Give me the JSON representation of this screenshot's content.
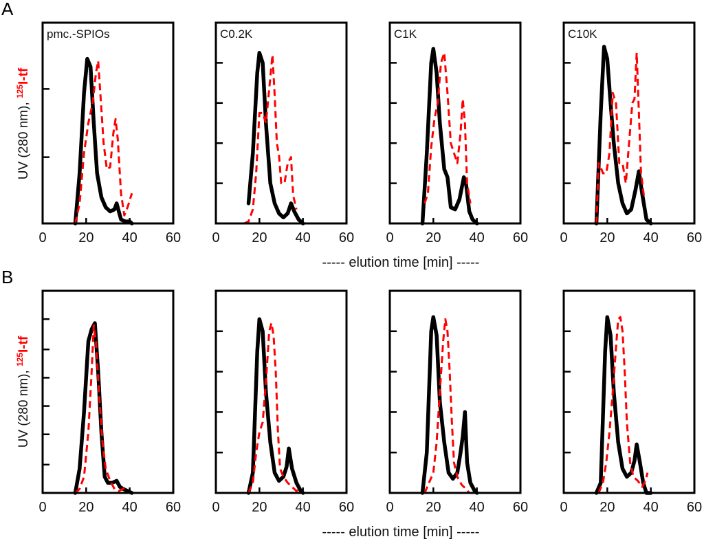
{
  "chart_data": {
    "type": "line",
    "figure_rows": [
      {
        "label": "A",
        "xlabel": "----- elution time [min] -----",
        "ylabel_black": "UV (280 nm),",
        "ylabel_red_sup": "125",
        "ylabel_red": "I-tf",
        "panels": [
          {
            "title": "pmc.-SPIOs",
            "xlim": [
              0,
              60
            ],
            "ylim": [
              0,
              1
            ],
            "xticks": [
              0,
              20,
              40,
              60
            ],
            "yticks": [
              0.33,
              0.67
            ],
            "series": [
              {
                "name": "UV (280 nm)",
                "style": "solid",
                "color": "#000000",
                "x": [
                  15,
                  17,
                  19,
                  20.5,
                  22,
                  23.5,
                  25,
                  27,
                  29,
                  31,
                  33,
                  34,
                  35,
                  36,
                  38,
                  40,
                  41
                ],
                "y": [
                  0,
                  0.25,
                  0.65,
                  0.82,
                  0.78,
                  0.5,
                  0.25,
                  0.13,
                  0.08,
                  0.06,
                  0.07,
                  0.1,
                  0.06,
                  0.02,
                  0.01,
                  0.01,
                  0
                ]
              },
              {
                "name": "125I-tf",
                "style": "dashed",
                "color": "#ff0000",
                "x": [
                  15,
                  17,
                  19,
                  21,
                  23,
                  24.5,
                  25.5,
                  26.5,
                  28,
                  29.5,
                  31,
                  32.5,
                  33.5,
                  34.5,
                  36,
                  37.5,
                  39,
                  41
                ],
                "y": [
                  0,
                  0.1,
                  0.35,
                  0.5,
                  0.6,
                  0.75,
                  0.81,
                  0.65,
                  0.4,
                  0.27,
                  0.28,
                  0.45,
                  0.52,
                  0.42,
                  0.15,
                  0.04,
                  0.08,
                  0.15
                ]
              }
            ]
          },
          {
            "title": "C0.2K",
            "xlim": [
              0,
              60
            ],
            "ylim": [
              0,
              1
            ],
            "xticks": [
              0,
              20,
              40,
              60
            ],
            "yticks": [
              0.2,
              0.4,
              0.6,
              0.8
            ],
            "series": [
              {
                "name": "UV (280 nm)",
                "style": "solid",
                "color": "#000000",
                "x": [
                  15,
                  17,
                  19,
                  20,
                  21.5,
                  23,
                  25,
                  27,
                  29,
                  31,
                  33,
                  34.5,
                  36,
                  38,
                  40
                ],
                "y": [
                  0.1,
                  0.35,
                  0.75,
                  0.85,
                  0.8,
                  0.5,
                  0.2,
                  0.1,
                  0.05,
                  0.03,
                  0.05,
                  0.1,
                  0.06,
                  0.02,
                  0
                ]
              },
              {
                "name": "125I-tf",
                "style": "dashed",
                "color": "#ff0000",
                "x": [
                  13,
                  15,
                  17,
                  18.5,
                  20,
                  21.5,
                  23,
                  24.5,
                  26,
                  27,
                  28,
                  29,
                  30,
                  31.5,
                  33,
                  34.5,
                  35.5,
                  37
                ],
                "y": [
                  0,
                  0.01,
                  0.07,
                  0.25,
                  0.55,
                  0.55,
                  0.5,
                  0.67,
                  0.84,
                  0.64,
                  0.4,
                  0.34,
                  0.2,
                  0.2,
                  0.3,
                  0.33,
                  0.14,
                  0.07
                ]
              }
            ]
          },
          {
            "title": "C1K",
            "xlim": [
              0,
              60
            ],
            "ylim": [
              0,
              1
            ],
            "xticks": [
              0,
              20,
              40,
              60
            ],
            "yticks": [
              0.2,
              0.4,
              0.6,
              0.8
            ],
            "series": [
              {
                "name": "UV (280 nm)",
                "style": "solid",
                "color": "#000000",
                "x": [
                  15,
                  17,
                  19,
                  20,
                  21.5,
                  23,
                  25,
                  26.5,
                  28,
                  30,
                  32,
                  34,
                  35,
                  36.5,
                  38,
                  40
                ],
                "y": [
                  0,
                  0.35,
                  0.8,
                  0.87,
                  0.75,
                  0.5,
                  0.27,
                  0.23,
                  0.08,
                  0.07,
                  0.12,
                  0.23,
                  0.2,
                  0.06,
                  0.02,
                  0
                ]
              },
              {
                "name": "125I-tf",
                "style": "dashed",
                "color": "#ff0000",
                "x": [
                  16,
                  17.5,
                  19,
                  20.5,
                  22,
                  23.5,
                  25,
                  26.5,
                  28,
                  29.5,
                  31,
                  32.5,
                  33.5,
                  34.5,
                  35.5,
                  37
                ],
                "y": [
                  0.1,
                  0.15,
                  0.38,
                  0.52,
                  0.6,
                  0.8,
                  0.85,
                  0.65,
                  0.4,
                  0.35,
                  0.3,
                  0.45,
                  0.62,
                  0.5,
                  0.2,
                  0.1
                ]
              }
            ]
          },
          {
            "title": "C10K",
            "xlim": [
              0,
              60
            ],
            "ylim": [
              0,
              1
            ],
            "xticks": [
              0,
              20,
              40,
              60
            ],
            "yticks": [
              0.2,
              0.4,
              0.6,
              0.8
            ],
            "series": [
              {
                "name": "UV (280 nm)",
                "style": "solid",
                "color": "#000000",
                "x": [
                  15,
                  17,
                  18.5,
                  20,
                  21.5,
                  23,
                  25,
                  27,
                  29,
                  31,
                  33,
                  34.5,
                  36,
                  38,
                  40
                ],
                "y": [
                  0,
                  0.55,
                  0.88,
                  0.82,
                  0.6,
                  0.4,
                  0.2,
                  0.1,
                  0.05,
                  0.07,
                  0.17,
                  0.26,
                  0.15,
                  0.02,
                  0
                ]
              },
              {
                "name": "125I-tf",
                "style": "dashed",
                "color": "#ff0000",
                "x": [
                  15,
                  16,
                  17,
                  18,
                  19.5,
                  21,
                  22.5,
                  24,
                  25.5,
                  27,
                  28.5,
                  30,
                  31.5,
                  32.5,
                  33.5,
                  34.5,
                  35.5,
                  37
                ],
                "y": [
                  0,
                  0.3,
                  0.28,
                  0.25,
                  0.25,
                  0.35,
                  0.65,
                  0.6,
                  0.3,
                  0.3,
                  0.2,
                  0.4,
                  0.6,
                  0.62,
                  0.85,
                  0.55,
                  0.25,
                  0.12
                ]
              }
            ]
          }
        ]
      },
      {
        "label": "B",
        "xlabel": "----- elution time [min] -----",
        "ylabel_black": "UV (280 nm),",
        "ylabel_red_sup": "125",
        "ylabel_red": "I-tf",
        "panels": [
          {
            "title": "",
            "xlim": [
              0,
              60
            ],
            "ylim": [
              0,
              1
            ],
            "xticks": [
              0,
              20,
              40,
              60
            ],
            "yticks": [
              0.14,
              0.29,
              0.43,
              0.57,
              0.71,
              0.86
            ],
            "series": [
              {
                "name": "UV (280 nm)",
                "style": "solid",
                "color": "#000000",
                "x": [
                  15,
                  17,
                  19,
                  21,
                  22.5,
                  24,
                  25.5,
                  27,
                  28.5,
                  30,
                  32,
                  34,
                  35.5,
                  37,
                  39,
                  41
                ],
                "y": [
                  0,
                  0.12,
                  0.4,
                  0.75,
                  0.81,
                  0.84,
                  0.6,
                  0.3,
                  0.08,
                  0.05,
                  0.05,
                  0.06,
                  0.03,
                  0.02,
                  0.01,
                  0
                ]
              },
              {
                "name": "125I-tf",
                "style": "dashed",
                "color": "#ff0000",
                "x": [
                  15,
                  17,
                  19,
                  21,
                  22.5,
                  23.5,
                  24.5,
                  26,
                  27.5,
                  29,
                  31,
                  33,
                  35,
                  37,
                  38.5
                ],
                "y": [
                  0,
                  0.02,
                  0.08,
                  0.3,
                  0.6,
                  0.83,
                  0.75,
                  0.48,
                  0.25,
                  0.12,
                  0.06,
                  0.02,
                  0.01,
                  0.02,
                  0.04
                ]
              }
            ]
          },
          {
            "title": "",
            "xlim": [
              0,
              60
            ],
            "ylim": [
              0,
              1
            ],
            "xticks": [
              0,
              20,
              40,
              60
            ],
            "yticks": [
              0.2,
              0.4,
              0.6,
              0.8
            ],
            "series": [
              {
                "name": "UV (280 nm)",
                "style": "solid",
                "color": "#000000",
                "x": [
                  15,
                  17,
                  19,
                  20,
                  21.5,
                  23,
                  25,
                  27,
                  29,
                  31,
                  32.5,
                  33.5,
                  35,
                  37,
                  39,
                  40
                ],
                "y": [
                  0,
                  0.1,
                  0.7,
                  0.86,
                  0.8,
                  0.5,
                  0.25,
                  0.1,
                  0.06,
                  0.08,
                  0.13,
                  0.22,
                  0.12,
                  0.05,
                  0.01,
                  0
                ]
              },
              {
                "name": "125I-tf",
                "style": "dashed",
                "color": "#ff0000",
                "x": [
                  15,
                  17,
                  18.5,
                  20,
                  21.5,
                  23,
                  24.5,
                  25.5,
                  26.5,
                  27.5,
                  28.5,
                  29.5,
                  31,
                  33,
                  35,
                  37,
                  38.5
                ],
                "y": [
                  0,
                  0.05,
                  0.2,
                  0.3,
                  0.35,
                  0.55,
                  0.8,
                  0.84,
                  0.78,
                  0.6,
                  0.3,
                  0.12,
                  0.08,
                  0.05,
                  0.03,
                  0.01,
                  0.02
                ]
              }
            ]
          },
          {
            "title": "",
            "xlim": [
              0,
              60
            ],
            "ylim": [
              0,
              1
            ],
            "xticks": [
              0,
              20,
              40,
              60
            ],
            "yticks": [
              0.2,
              0.4,
              0.6,
              0.8
            ],
            "series": [
              {
                "name": "UV (280 nm)",
                "style": "solid",
                "color": "#000000",
                "x": [
                  15,
                  17,
                  19,
                  20,
                  21.5,
                  23,
                  25,
                  27,
                  29,
                  31,
                  32.5,
                  33.5,
                  34.5,
                  35.5,
                  37,
                  39,
                  40
                ],
                "y": [
                  0,
                  0.2,
                  0.8,
                  0.87,
                  0.78,
                  0.45,
                  0.25,
                  0.1,
                  0.07,
                  0.1,
                  0.2,
                  0.28,
                  0.4,
                  0.15,
                  0.05,
                  0.01,
                  0
                ]
              },
              {
                "name": "125I-tf",
                "style": "dashed",
                "color": "#ff0000",
                "x": [
                  16,
                  18,
                  20,
                  21.5,
                  23,
                  24.5,
                  25.5,
                  26.5,
                  27.5,
                  28.5,
                  29.5,
                  31,
                  33,
                  35,
                  36.5
                ],
                "y": [
                  0,
                  0.05,
                  0.1,
                  0.25,
                  0.5,
                  0.75,
                  0.86,
                  0.8,
                  0.6,
                  0.35,
                  0.15,
                  0.08,
                  0.04,
                  0.02,
                  0
                ]
              }
            ]
          },
          {
            "title": "",
            "xlim": [
              0,
              60
            ],
            "ylim": [
              0,
              1
            ],
            "xticks": [
              "0",
              20,
              40,
              60
            ],
            "yticks": [
              0.2,
              0.4,
              0.6,
              0.8
            ],
            "series": [
              {
                "name": "UV (280 nm)",
                "style": "solid",
                "color": "#000000",
                "x": [
                  15,
                  17,
                  19,
                  20,
                  21.5,
                  23,
                  25,
                  27,
                  29,
                  31,
                  32.5,
                  33.5,
                  35,
                  36.5,
                  38,
                  40
                ],
                "y": [
                  0,
                  0.05,
                  0.7,
                  0.87,
                  0.78,
                  0.5,
                  0.25,
                  0.12,
                  0.08,
                  0.1,
                  0.16,
                  0.24,
                  0.15,
                  0.05,
                  0,
                  0
                ]
              },
              {
                "name": "125I-tf",
                "style": "dashed",
                "color": "#ff0000",
                "x": [
                  16,
                  18,
                  19.5,
                  21,
                  22.5,
                  24,
                  25,
                  26,
                  27,
                  28,
                  29,
                  30.5,
                  32,
                  34,
                  36,
                  37.5,
                  38.5
                ],
                "y": [
                  0,
                  0.05,
                  0.15,
                  0.3,
                  0.5,
                  0.72,
                  0.86,
                  0.87,
                  0.8,
                  0.6,
                  0.35,
                  0.15,
                  0.08,
                  0.06,
                  0.03,
                  0.06,
                  0.1
                ]
              }
            ]
          }
        ]
      }
    ]
  }
}
